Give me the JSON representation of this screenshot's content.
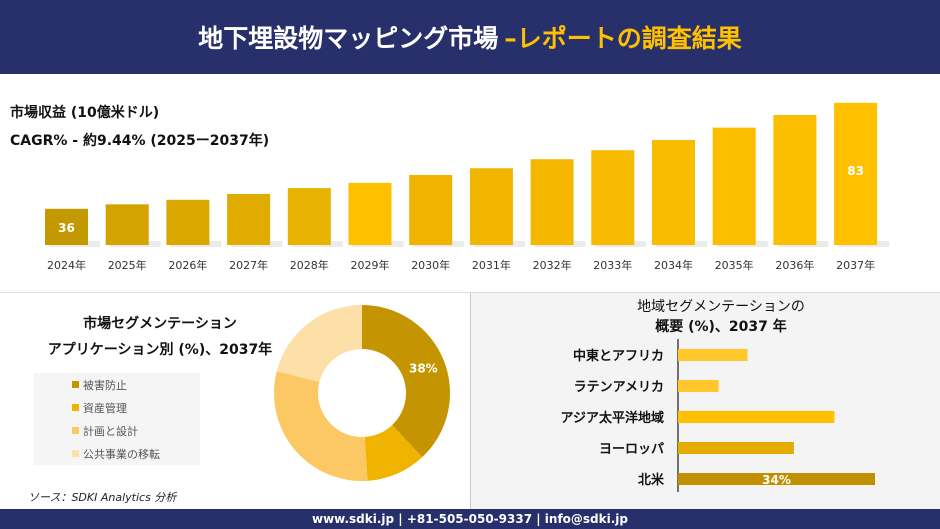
{
  "header": {
    "title": "地下埋設物マッピング市場",
    "subtitle": "–レポートの調査結果"
  },
  "revenue": {
    "label": "市場収益 (10億米ドル)",
    "cagr": "CAGR% - 約9.44% (2025ー2037年)"
  },
  "chart_data": [
    {
      "type": "bar",
      "categories": [
        "2024年",
        "2025年",
        "2026年",
        "2027年",
        "2028年",
        "2029年",
        "2030年",
        "2031年",
        "2032年",
        "2033年",
        "2034年",
        "2035年",
        "2036年",
        "2037年"
      ],
      "values": [
        36,
        38,
        40,
        42.6,
        45.2,
        47.5,
        51,
        54,
        58,
        62,
        66.5,
        72,
        77.6,
        83
      ],
      "data_labels": {
        "0": "36",
        "13": "83"
      },
      "colors": [
        "#c49800",
        "#d4a300",
        "#daa800",
        "#e0ac00",
        "#e8b300",
        "#ffc000",
        "#f0b400",
        "#f2b600",
        "#f4b800",
        "#f6ba00",
        "#f8bc00",
        "#fabd00",
        "#fbbe00",
        "#ffc000"
      ]
    },
    {
      "type": "pie",
      "title": "市場セグメンテーション アプリケーション別 (%)、2037年",
      "title_lines": [
        "市場セグメンテーション",
        "アプリケーション別 (%)、2037年"
      ],
      "labels": [
        "被害防止",
        "資産管理",
        "計画と設計",
        "公共事業の移転"
      ],
      "values": [
        38,
        11,
        30,
        21
      ],
      "data_labels": [
        "38%",
        "",
        "",
        ""
      ],
      "colors": [
        "#c49500",
        "#f0b400",
        "#fbc864",
        "#fddfa8"
      ]
    },
    {
      "type": "bar",
      "orientation": "horizontal",
      "title_lines": [
        "地域セグメンテーションの",
        "概要 (%)、2037 年"
      ],
      "categories": [
        "中東とアフリカ",
        "ラテンアメリカ",
        "アジア太平洋地域",
        "ヨーロッパ",
        "北米"
      ],
      "values": [
        12,
        7,
        27,
        20,
        34
      ],
      "data_labels": [
        "",
        "",
        "",
        "",
        "34%"
      ],
      "colors": [
        "#ffc72c",
        "#ffc72c",
        "#ffc000",
        "#e5ab00",
        "#c09000"
      ]
    }
  ],
  "source": "ソース：SDKI Analytics 分析",
  "footer": "www.sdki.jp | +81-505-050-9337 | info@sdki.jp"
}
